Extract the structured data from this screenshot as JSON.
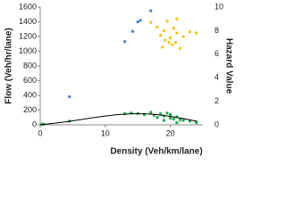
{
  "chart_data": {
    "type": "scatter",
    "xlabel": "Density (Veh/km/lane)",
    "ylabel": "Flow (Veh/hr/lane)",
    "y2label": "Hazard Value",
    "xlim": [
      0,
      25
    ],
    "xticks": [
      0,
      10,
      20
    ],
    "ylim": [
      0,
      1600
    ],
    "yticks": [
      0,
      200,
      400,
      600,
      800,
      1000,
      1200,
      1400,
      1600
    ],
    "y2lim": [
      0,
      10
    ],
    "y2ticks": [
      0,
      2,
      4,
      6,
      8,
      10
    ],
    "grid": false,
    "series": [
      {
        "color": "#4a7fc9",
        "x": [
          4.5,
          13,
          14.2,
          15,
          15.4,
          17
        ],
        "values": [
          380,
          1130,
          1270,
          1400,
          1420,
          1550
        ]
      },
      {
        "color": "#f2c21b",
        "axis": "y2",
        "x": [
          17,
          18,
          18.5,
          19,
          19.5,
          19.8,
          20,
          20.5,
          21,
          21.5,
          20.3,
          19.2,
          22,
          23,
          24,
          21,
          18.8,
          20.8
        ],
        "values": [
          8.7,
          8.3,
          7.6,
          8.0,
          8.8,
          7.0,
          7.4,
          8.2,
          7.8,
          6.5,
          6.8,
          7.2,
          7.5,
          7.9,
          7.8,
          9.0,
          6.6,
          7.0
        ]
      },
      {
        "color": "#1fa84f",
        "x": [
          0.3,
          0.5,
          4.5,
          13,
          14,
          15,
          16,
          17,
          17.5,
          18,
          18.5,
          19,
          19.5,
          20,
          20.5,
          21,
          21.5,
          22,
          23,
          24,
          19,
          20,
          21,
          24
        ],
        "values": [
          10,
          5,
          50,
          150,
          160,
          155,
          140,
          170,
          130,
          100,
          150,
          120,
          160,
          90,
          80,
          110,
          70,
          60,
          50,
          30,
          60,
          140,
          30,
          40
        ]
      },
      {
        "color": "#000000",
        "mode": "line",
        "x": [
          0,
          3,
          5,
          8,
          10,
          12,
          14,
          16,
          17,
          18,
          20,
          22,
          24
        ],
        "values": [
          0,
          30,
          55,
          95,
          120,
          140,
          150,
          150,
          145,
          138,
          115,
          85,
          50
        ]
      }
    ]
  }
}
